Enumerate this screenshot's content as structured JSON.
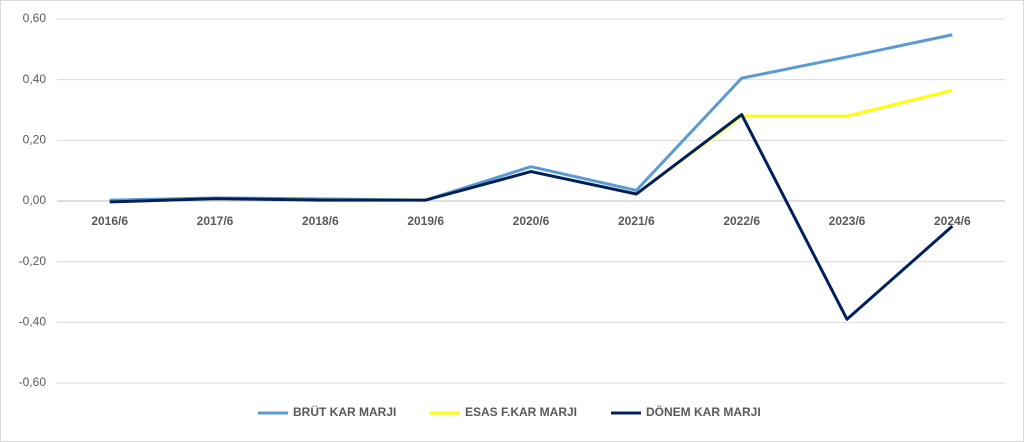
{
  "chart_data": {
    "type": "line",
    "categories": [
      "2016/6",
      "2017/6",
      "2018/6",
      "2019/6",
      "2020/6",
      "2021/6",
      "2022/6",
      "2023/6",
      "2024/6"
    ],
    "series": [
      {
        "name": "BRÜT KAR MARJI",
        "color": "#5b9bd5",
        "values": [
          0.003,
          0.01,
          0.007,
          0.003,
          0.113,
          0.035,
          0.405,
          0.475,
          0.548
        ]
      },
      {
        "name": "ESAS F.KAR MARJI",
        "color": "#ffff00",
        "values": [
          -0.003,
          0.008,
          0.003,
          0.003,
          0.097,
          0.023,
          0.28,
          0.28,
          0.365
        ]
      },
      {
        "name": "DÖNEM KAR MARJI",
        "color": "#002060",
        "values": [
          -0.003,
          0.008,
          0.003,
          0.003,
          0.097,
          0.023,
          0.285,
          -0.39,
          -0.083
        ]
      }
    ],
    "ylim": [
      -0.6,
      0.6
    ],
    "yticks": [
      {
        "value": -0.6,
        "label": "-0,60"
      },
      {
        "value": -0.4,
        "label": "-0,40"
      },
      {
        "value": -0.2,
        "label": "-0,20"
      },
      {
        "value": 0,
        "label": "0,00"
      },
      {
        "value": 0.2,
        "label": "0,20"
      },
      {
        "value": 0.4,
        "label": "0,40"
      },
      {
        "value": 0.6,
        "label": "0,60"
      }
    ],
    "grid": true,
    "legend": "bottom"
  }
}
